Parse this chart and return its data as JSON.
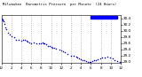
{
  "title": "Milwaukee  Barometric Pressure  per Minute  (24 Hours)",
  "bg_color": "#ffffff",
  "plot_bg_color": "#ffffff",
  "dot_color": "#0000ff",
  "grid_color": "#808080",
  "text_color": "#000000",
  "legend_color": "#0000ff",
  "ylim": [
    28.95,
    30.5
  ],
  "xlim": [
    0,
    1440
  ],
  "ylabel_values": [
    30.4,
    30.2,
    30.0,
    29.8,
    29.6,
    29.4,
    29.2,
    29.0
  ],
  "xlabel_values": [
    0,
    120,
    240,
    360,
    480,
    600,
    720,
    840,
    960,
    1080,
    1200,
    1320,
    1440
  ],
  "xlabel_labels": [
    "12",
    "2",
    "4",
    "6",
    "8",
    "10",
    "12",
    "2",
    "4",
    "6",
    "8",
    "10",
    "12"
  ],
  "vgrid_positions": [
    120,
    240,
    360,
    480,
    600,
    720,
    840,
    960,
    1080,
    1200,
    1320
  ],
  "data_x": [
    0,
    10,
    20,
    30,
    40,
    50,
    60,
    80,
    100,
    120,
    150,
    180,
    210,
    240,
    260,
    280,
    300,
    320,
    340,
    360,
    390,
    420,
    450,
    480,
    500,
    510,
    520,
    540,
    560,
    580,
    600,
    620,
    640,
    660,
    700,
    720,
    740,
    760,
    800,
    840,
    870,
    900,
    920,
    940,
    960,
    980,
    1000,
    1020,
    1040,
    1060,
    1080,
    1100,
    1120,
    1140,
    1160,
    1190,
    1220,
    1250,
    1280,
    1310,
    1340,
    1370,
    1400,
    1430
  ],
  "data_y": [
    30.4,
    30.38,
    30.35,
    30.3,
    30.22,
    30.12,
    30.05,
    29.95,
    29.88,
    29.82,
    29.78,
    29.72,
    29.7,
    29.68,
    29.7,
    29.72,
    29.68,
    29.65,
    29.62,
    29.6,
    29.62,
    29.58,
    29.6,
    29.58,
    29.62,
    29.6,
    29.58,
    29.55,
    29.52,
    29.5,
    29.48,
    29.46,
    29.44,
    29.42,
    29.38,
    29.35,
    29.32,
    29.3,
    29.25,
    29.2,
    29.18,
    29.15,
    29.12,
    29.1,
    29.08,
    29.06,
    29.04,
    29.02,
    29.0,
    29.0,
    29.0,
    29.02,
    29.04,
    29.06,
    29.08,
    29.1,
    29.12,
    29.14,
    29.16,
    29.14,
    29.1,
    29.06,
    29.02,
    29.0
  ]
}
